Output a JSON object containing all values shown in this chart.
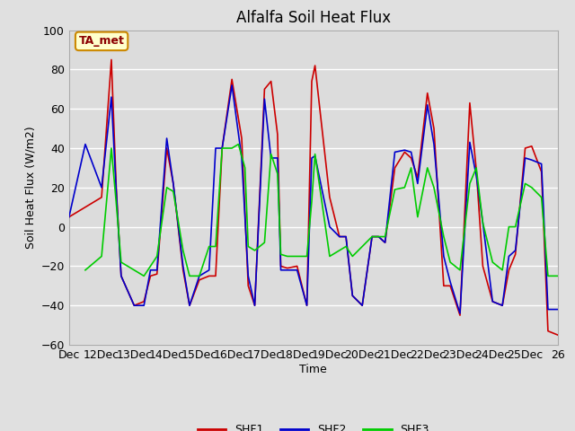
{
  "title": "Alfalfa Soil Heat Flux",
  "xlabel": "Time",
  "ylabel": "Soil Heat Flux (W/m2)",
  "ylim": [
    -60,
    100
  ],
  "xtick_labels": [
    "Dec",
    "12Dec",
    "13Dec",
    "14Dec",
    "15Dec",
    "16Dec",
    "17Dec",
    "18Dec",
    "19Dec",
    "20Dec",
    "21Dec",
    "22Dec",
    "23Dec",
    "24Dec",
    "25Dec",
    "26"
  ],
  "xtick_positions": [
    0,
    1,
    2,
    3,
    4,
    5,
    6,
    7,
    8,
    9,
    10,
    11,
    12,
    13,
    14,
    15
  ],
  "background_color": "#e0e0e0",
  "plot_bg_color": "#dcdcdc",
  "grid_color": "#ffffff",
  "annotation_text": "TA_met",
  "annotation_bg": "#ffffcc",
  "annotation_border": "#cc8800",
  "annotation_text_color": "#8b0000",
  "series_colors": [
    "#cc0000",
    "#0000cc",
    "#00cc00"
  ],
  "series_names": [
    "SHF1",
    "SHF2",
    "SHF3"
  ],
  "shf1_x": [
    0.0,
    0.5,
    1.0,
    1.3,
    1.45,
    1.6,
    2.0,
    2.3,
    2.5,
    2.7,
    3.0,
    3.2,
    3.5,
    3.7,
    4.0,
    4.3,
    4.5,
    4.7,
    5.0,
    5.3,
    5.5,
    5.7,
    6.0,
    6.2,
    6.4,
    6.5,
    6.7,
    7.0,
    7.3,
    7.45,
    7.55,
    8.0,
    8.3,
    8.5,
    8.7,
    9.0,
    9.3,
    9.5,
    9.7,
    10.0,
    10.3,
    10.5,
    10.7,
    11.0,
    11.2,
    11.5,
    11.7,
    12.0,
    12.3,
    12.5,
    12.7,
    13.0,
    13.3,
    13.5,
    13.7,
    14.0,
    14.2,
    14.5,
    14.7,
    15.0
  ],
  "shf1_y": [
    5,
    10,
    15,
    85,
    20,
    -25,
    -40,
    -38,
    -25,
    -24,
    40,
    22,
    -22,
    -40,
    -27,
    -25,
    -25,
    40,
    75,
    45,
    -30,
    -40,
    70,
    74,
    47,
    -20,
    -21,
    -20,
    -40,
    74,
    82,
    15,
    -5,
    -5,
    -35,
    -40,
    -5,
    -5,
    -8,
    30,
    38,
    35,
    25,
    68,
    50,
    -30,
    -30,
    -45,
    63,
    29,
    -20,
    -38,
    -40,
    -22,
    -14,
    40,
    41,
    28,
    -53,
    -55
  ],
  "shf2_x": [
    0.0,
    0.5,
    1.0,
    1.3,
    1.45,
    1.6,
    2.0,
    2.3,
    2.5,
    2.7,
    3.0,
    3.2,
    3.5,
    3.7,
    4.0,
    4.3,
    4.5,
    4.7,
    5.0,
    5.3,
    5.5,
    5.7,
    6.0,
    6.2,
    6.4,
    6.5,
    6.7,
    7.0,
    7.3,
    7.45,
    7.55,
    8.0,
    8.3,
    8.5,
    8.7,
    9.0,
    9.3,
    9.5,
    9.7,
    10.0,
    10.3,
    10.5,
    10.7,
    11.0,
    11.2,
    11.5,
    11.7,
    12.0,
    12.3,
    12.5,
    12.7,
    13.0,
    13.3,
    13.5,
    13.7,
    14.0,
    14.2,
    14.5,
    14.7,
    15.0
  ],
  "shf2_y": [
    5,
    42,
    20,
    66,
    18,
    -25,
    -40,
    -40,
    -22,
    -22,
    45,
    22,
    -20,
    -40,
    -25,
    -22,
    40,
    40,
    72,
    35,
    -25,
    -40,
    65,
    35,
    35,
    -22,
    -22,
    -22,
    -40,
    35,
    36,
    0,
    -5,
    -5,
    -35,
    -40,
    -5,
    -5,
    -8,
    38,
    39,
    38,
    22,
    62,
    42,
    -15,
    -28,
    -44,
    43,
    26,
    2,
    -38,
    -40,
    -15,
    -12,
    35,
    34,
    32,
    -42,
    -42
  ],
  "shf3_x": [
    0.5,
    1.0,
    1.3,
    1.45,
    1.6,
    2.0,
    2.3,
    2.5,
    2.7,
    3.0,
    3.2,
    3.5,
    3.7,
    4.0,
    4.3,
    4.5,
    4.7,
    5.0,
    5.2,
    5.4,
    5.5,
    5.7,
    6.0,
    6.2,
    6.4,
    6.5,
    6.7,
    7.0,
    7.3,
    7.45,
    7.55,
    8.0,
    8.3,
    8.5,
    8.7,
    9.0,
    9.3,
    9.5,
    9.7,
    10.0,
    10.3,
    10.5,
    10.7,
    11.0,
    11.2,
    11.5,
    11.7,
    12.0,
    12.3,
    12.5,
    12.7,
    13.0,
    13.3,
    13.5,
    13.7,
    14.0,
    14.2,
    14.5,
    14.7,
    15.0
  ],
  "shf3_y": [
    -22,
    -15,
    40,
    12,
    -18,
    -22,
    -25,
    -20,
    -15,
    20,
    18,
    -12,
    -25,
    -25,
    -10,
    -10,
    40,
    40,
    42,
    30,
    -10,
    -12,
    -8,
    37,
    27,
    -14,
    -15,
    -15,
    -15,
    13,
    37,
    -15,
    -12,
    -10,
    -15,
    -10,
    -5,
    -5,
    -5,
    19,
    20,
    30,
    5,
    30,
    20,
    -5,
    -18,
    -22,
    22,
    30,
    2,
    -18,
    -22,
    0,
    0,
    22,
    20,
    15,
    -25,
    -25
  ],
  "yticks": [
    -60,
    -40,
    -20,
    0,
    20,
    40,
    60,
    80,
    100
  ]
}
